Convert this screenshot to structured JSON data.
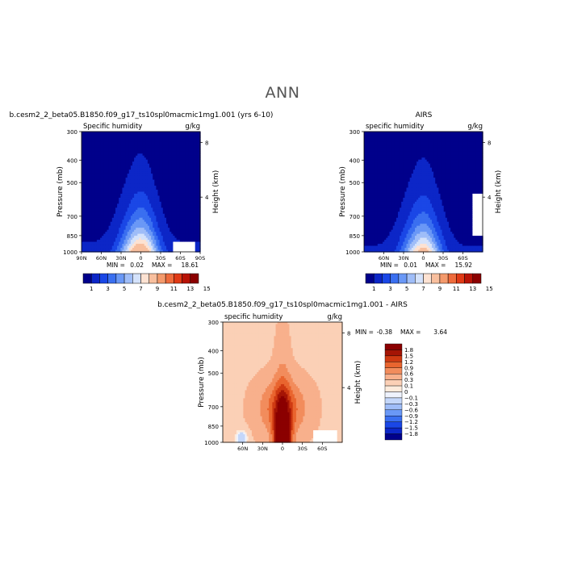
{
  "page": {
    "title": "ANN"
  },
  "chart_data": [
    {
      "type": "contour",
      "run_title": "b.cesm2_2_beta05.B1850.f09_g17_ts10spl0macmic1mg1.001 (yrs 6-10)",
      "variable": "Specific humidity",
      "units": "g/kg",
      "ylabel": "Pressure (mb)",
      "y2label": "Height (km)",
      "y_ticks": [
        300,
        400,
        500,
        700,
        850,
        1000
      ],
      "y2_ticks": [
        8,
        4
      ],
      "x_ticks": [
        "90N",
        "60N",
        "30N",
        "0",
        "30S",
        "60S",
        "90S"
      ],
      "min": "0.02",
      "max": "18.61",
      "stats_text": {
        "min_label": "MIN =",
        "min": "0.02",
        "max_label": "MAX =",
        "max": "18.61"
      },
      "peak": 18.61,
      "levels": [
        1,
        3,
        5,
        7,
        9,
        11,
        13,
        15
      ],
      "colorbar_labels": [
        "1",
        "3",
        "5",
        "7",
        "9",
        "11",
        "13",
        "15"
      ]
    },
    {
      "type": "contour",
      "run_title": "AIRS",
      "variable": "specific humidity",
      "units": "g/kg",
      "ylabel": "Pressure (mb)",
      "y2label": "Height (km)",
      "y_ticks": [
        300,
        400,
        500,
        700,
        850,
        1000
      ],
      "y2_ticks": [
        8,
        4
      ],
      "x_ticks": [
        "60N",
        "30N",
        "0",
        "30S",
        "60S"
      ],
      "min": "0.01",
      "max": "15.92",
      "stats_text": {
        "min_label": "MIN =",
        "min": "0.01",
        "max_label": "MAX =",
        "max": "15.92"
      },
      "peak": 15.92,
      "levels": [
        1,
        3,
        5,
        7,
        9,
        11,
        13,
        15
      ],
      "colorbar_labels": [
        "1",
        "3",
        "5",
        "7",
        "9",
        "11",
        "13",
        "15"
      ]
    },
    {
      "type": "contour",
      "run_title": "b.cesm2_2_beta05.B1850.f09_g17_ts10spl0macmic1mg1.001 - AIRS",
      "variable": "specific humidity",
      "units": "g/kg",
      "ylabel": "Pressure (mb)",
      "y2label": "Height (km)",
      "y_ticks": [
        300,
        400,
        500,
        700,
        850,
        1000
      ],
      "y2_ticks": [
        8,
        4
      ],
      "x_ticks": [
        "60N",
        "30N",
        "0",
        "30S",
        "60S"
      ],
      "min": "-0.38",
      "max": "3.64",
      "stats_text": {
        "min_label": "MIN =",
        "min": "-0.38",
        "max_label": "MAX =",
        "max": "3.64"
      },
      "levels": [
        -1.8,
        -1.5,
        -1.2,
        -0.9,
        -0.6,
        -0.3,
        -0.1,
        0,
        0.1,
        0.3,
        0.6,
        0.9,
        1.2,
        1.5,
        1.8
      ],
      "colorbar_labels": [
        "1.8",
        "1.5",
        "1.2",
        "0.9",
        "0.6",
        "0.3",
        "0.1",
        "0",
        "−0.1",
        "−0.3",
        "−0.6",
        "−0.9",
        "−1.2",
        "−1.5",
        "−1.8"
      ]
    }
  ],
  "colors": {
    "abs_scale": [
      "#00008b",
      "#0c26c7",
      "#1a47e6",
      "#3a6ff0",
      "#6a98f6",
      "#9fbdf8",
      "#d4e2fb",
      "#fde2d2",
      "#f8bf9e",
      "#f49a6c",
      "#ee6b3c",
      "#e03a16",
      "#b81306",
      "#8b0000"
    ],
    "diff_scale": [
      "#00008b",
      "#0c26c7",
      "#1a47e6",
      "#3a6ff0",
      "#6a98f6",
      "#9fbdf8",
      "#c4d7fa",
      "#eef2fd",
      "#fdebdc",
      "#fbd0b6",
      "#f8b08c",
      "#f28c5c",
      "#e9652f",
      "#cf3a12",
      "#a51505",
      "#8b0000"
    ]
  }
}
